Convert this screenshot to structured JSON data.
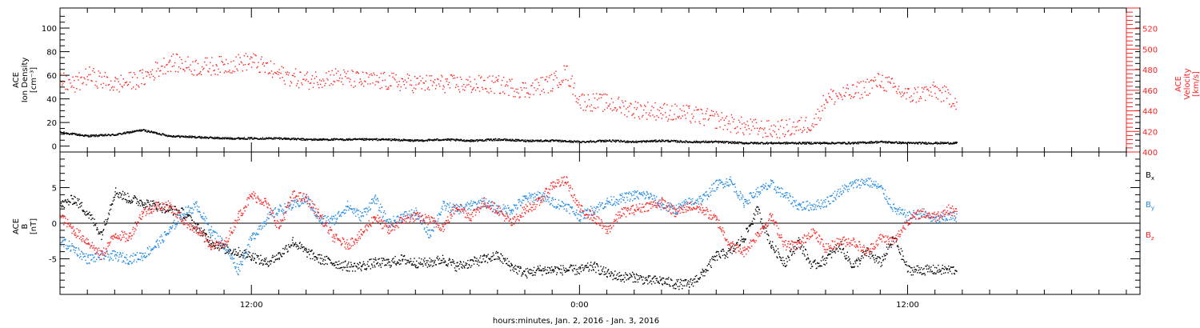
{
  "colors": {
    "density": "#000000",
    "velocity": "#ff2020",
    "bx": "#000000",
    "by": "#1e88e5",
    "bz": "#ff2020",
    "axis": "#000000"
  },
  "chart_data": [
    {
      "type": "scatter",
      "panel": "top",
      "y_title_lines": [
        "ACE",
        "Ion Density",
        "[cm⁻³]"
      ],
      "y2_title_lines": [
        "ACE",
        "Velocity",
        "[km/s]"
      ],
      "xlim_hours": [
        5,
        44.5
      ],
      "ylim": [
        -5,
        117
      ],
      "y2lim": [
        400,
        540
      ],
      "y_ticks": [
        0,
        20,
        40,
        60,
        80,
        100
      ],
      "y2_ticks": [
        400,
        420,
        440,
        460,
        480,
        500,
        520
      ],
      "series": [
        {
          "key": "density",
          "axis": "left",
          "x": [
            5.0,
            6.0,
            7.0,
            8.0,
            9.0,
            10.0,
            11.0,
            12.0,
            13.0,
            14.0,
            15.0,
            16.0,
            17.0,
            18.0,
            19.0,
            20.0,
            21.0,
            22.0,
            23.0,
            24.0,
            25.0,
            26.0,
            27.0,
            28.0,
            29.0,
            30.0,
            31.0,
            32.0,
            33.0,
            34.0,
            35.0,
            36.0,
            37.0,
            37.8
          ],
          "values": [
            12,
            9,
            10,
            14,
            9,
            8,
            7,
            7,
            7,
            6,
            6,
            6,
            6,
            5,
            6,
            5,
            6,
            5,
            5,
            4,
            5,
            4,
            5,
            4,
            4,
            3,
            3,
            3,
            3,
            3,
            4,
            3,
            3,
            3
          ]
        },
        {
          "key": "velocity",
          "axis": "right",
          "x": [
            5.0,
            5.5,
            6.0,
            7.0,
            8.0,
            9.0,
            10.0,
            11.0,
            12.0,
            13.0,
            14.0,
            15.0,
            16.0,
            17.0,
            18.0,
            19.0,
            20.0,
            21.0,
            22.0,
            23.0,
            23.5,
            24.0,
            25.0,
            26.0,
            27.0,
            28.0,
            29.0,
            30.0,
            31.0,
            32.0,
            32.6,
            33.0,
            34.0,
            35.0,
            36.0,
            37.0,
            37.8
          ],
          "values": [
            470,
            465,
            475,
            466,
            472,
            488,
            483,
            485,
            489,
            476,
            470,
            474,
            470,
            469,
            467,
            467,
            466,
            466,
            461,
            468,
            478,
            450,
            448,
            442,
            440,
            437,
            432,
            425,
            422,
            425,
            430,
            453,
            458,
            470,
            455,
            460,
            450
          ]
        }
      ]
    },
    {
      "type": "scatter",
      "panel": "bottom",
      "y_title_lines": [
        "ACE",
        "B",
        "[nT]"
      ],
      "xlim_hours": [
        5,
        44.5
      ],
      "ylim": [
        -10,
        10
      ],
      "y_ticks": [
        -5,
        0,
        5
      ],
      "xlabel": "hours:minutes, Jan.  2, 2016 - Jan.  3, 2016",
      "x_ticks": [
        {
          "hour": 12,
          "label": "12:00"
        },
        {
          "hour": 24,
          "label": "0:00"
        },
        {
          "hour": 36,
          "label": "12:00"
        }
      ],
      "series": [
        {
          "key": "bx",
          "label_main": "B",
          "label_sub": "x",
          "x": [
            5.0,
            5.5,
            6.0,
            6.5,
            7.0,
            7.5,
            8.0,
            8.5,
            9.0,
            9.5,
            10.0,
            10.5,
            11.0,
            11.5,
            12.0,
            12.5,
            13.0,
            13.5,
            14.0,
            14.5,
            15.0,
            15.5,
            16.0,
            16.5,
            17.0,
            17.5,
            18.0,
            18.5,
            19.0,
            19.5,
            20.0,
            20.5,
            21.0,
            21.5,
            22.0,
            22.5,
            23.0,
            23.5,
            24.0,
            24.5,
            25.0,
            25.5,
            26.0,
            26.5,
            27.0,
            27.5,
            28.0,
            28.5,
            29.0,
            29.5,
            30.0,
            30.5,
            31.0,
            31.5,
            32.0,
            32.5,
            33.0,
            33.5,
            34.0,
            34.5,
            35.0,
            35.5,
            36.0,
            36.5,
            37.0,
            37.5,
            37.8
          ],
          "values": [
            2.5,
            3.5,
            1.5,
            -1.5,
            4.5,
            3.5,
            3.0,
            2.5,
            2.0,
            1.5,
            -0.5,
            -2.5,
            -3.5,
            -4.0,
            -4.5,
            -5.5,
            -4.5,
            -2.5,
            -4.0,
            -5.0,
            -5.5,
            -6.0,
            -6.0,
            -5.5,
            -5.5,
            -5.0,
            -5.5,
            -5.5,
            -5.0,
            -6.0,
            -5.5,
            -5.0,
            -4.5,
            -6.0,
            -7.0,
            -6.5,
            -6.5,
            -6.5,
            -6.5,
            -6.0,
            -7.0,
            -7.5,
            -7.5,
            -8.0,
            -8.0,
            -8.5,
            -8.5,
            -7.0,
            -4.5,
            -4.0,
            -2.0,
            2.0,
            -3.0,
            -5.5,
            -2.5,
            -6.0,
            -5.0,
            -3.0,
            -6.0,
            -4.0,
            -5.5,
            -2.0,
            -6.5,
            -6.5,
            -6.5,
            -6.5,
            -6.5
          ]
        },
        {
          "key": "by",
          "label_main": "B",
          "label_sub": "y",
          "x": [
            5.0,
            5.5,
            6.0,
            6.5,
            7.0,
            7.5,
            8.0,
            8.5,
            9.0,
            9.5,
            10.0,
            10.5,
            11.0,
            11.5,
            12.0,
            12.5,
            13.0,
            13.5,
            14.0,
            14.5,
            15.0,
            15.5,
            16.0,
            16.5,
            17.0,
            17.5,
            18.0,
            18.5,
            19.0,
            19.5,
            20.0,
            20.5,
            21.0,
            21.5,
            22.0,
            22.5,
            23.0,
            23.5,
            24.0,
            24.5,
            25.0,
            25.5,
            26.0,
            26.5,
            27.0,
            27.5,
            28.0,
            28.5,
            29.0,
            29.5,
            30.0,
            30.5,
            31.0,
            31.5,
            32.0,
            32.5,
            33.0,
            33.5,
            34.0,
            34.5,
            35.0,
            35.5,
            36.0,
            36.5,
            37.0,
            37.5,
            37.8
          ],
          "values": [
            -2.5,
            -3.5,
            -5.0,
            -4.5,
            -4.5,
            -5.0,
            -4.5,
            -3.0,
            -1.0,
            1.5,
            2.5,
            -1.0,
            -3.0,
            -6.5,
            -2.0,
            0.5,
            2.0,
            2.5,
            3.5,
            0.5,
            0.5,
            2.5,
            1.0,
            3.5,
            0.0,
            1.0,
            1.5,
            -1.5,
            2.5,
            2.0,
            2.5,
            3.0,
            2.0,
            2.0,
            3.5,
            4.0,
            3.0,
            2.5,
            1.0,
            2.0,
            3.0,
            3.5,
            4.0,
            4.0,
            2.5,
            2.0,
            3.0,
            3.5,
            5.5,
            6.0,
            3.0,
            4.5,
            5.5,
            4.0,
            2.5,
            2.5,
            3.0,
            4.5,
            5.5,
            6.0,
            5.0,
            2.0,
            1.0,
            1.5,
            0.5,
            1.0,
            1.0
          ]
        },
        {
          "key": "bz",
          "label_main": "B",
          "label_sub": "z",
          "x": [
            5.0,
            5.5,
            6.0,
            6.5,
            7.0,
            7.5,
            8.0,
            8.5,
            9.0,
            9.5,
            10.0,
            10.5,
            11.0,
            11.5,
            12.0,
            12.5,
            13.0,
            13.5,
            14.0,
            14.5,
            15.0,
            15.5,
            16.0,
            16.5,
            17.0,
            17.5,
            18.0,
            18.5,
            19.0,
            19.5,
            20.0,
            20.5,
            21.0,
            21.5,
            22.0,
            22.5,
            23.0,
            23.5,
            24.0,
            24.5,
            25.0,
            25.5,
            26.0,
            26.5,
            27.0,
            27.5,
            28.0,
            28.5,
            29.0,
            29.5,
            30.0,
            30.5,
            31.0,
            31.5,
            32.0,
            32.5,
            33.0,
            33.5,
            34.0,
            34.5,
            35.0,
            35.5,
            36.0,
            36.5,
            37.0,
            37.5,
            37.8
          ],
          "values": [
            1.0,
            -1.0,
            -2.5,
            -4.5,
            -1.5,
            -2.0,
            1.5,
            2.5,
            2.5,
            0.5,
            -1.0,
            -3.0,
            -3.0,
            1.0,
            4.0,
            3.0,
            -0.5,
            4.0,
            3.5,
            1.0,
            -2.0,
            -3.0,
            -1.5,
            1.0,
            -1.0,
            0.5,
            1.0,
            0.5,
            -0.5,
            2.5,
            1.0,
            3.0,
            2.0,
            0.0,
            2.0,
            3.0,
            5.5,
            6.0,
            2.0,
            1.0,
            -1.0,
            1.5,
            2.0,
            2.5,
            3.0,
            1.5,
            2.5,
            2.0,
            0.5,
            -3.0,
            -4.0,
            -1.5,
            1.0,
            -3.0,
            -3.0,
            -1.0,
            -3.5,
            -2.5,
            -2.5,
            -4.0,
            -2.0,
            -2.5,
            0.5,
            1.5,
            1.0,
            2.0,
            1.5
          ]
        }
      ]
    }
  ]
}
